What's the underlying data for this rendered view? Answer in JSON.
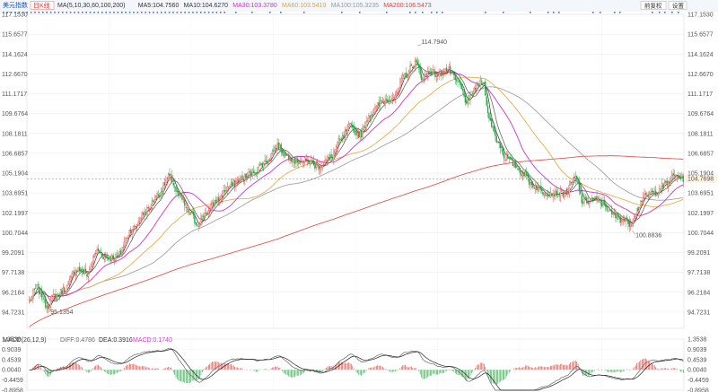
{
  "header": {
    "title": "美元指数",
    "period": "日K线",
    "ma_items": [
      {
        "text": "MA(5,10,30,60,100,200)",
        "color": "#333333"
      },
      {
        "text": "MA5:104.7560",
        "color": "#333333"
      },
      {
        "text": "MA10:104.6270",
        "color": "#333333"
      },
      {
        "text": "MA30:103.3780",
        "color": "#cc33cc"
      },
      {
        "text": "MA60:103.5410",
        "color": "#e8a33c"
      },
      {
        "text": "MA100:105.3235",
        "color": "#999999"
      },
      {
        "text": "MA200:106.5473",
        "color": "#e0433a"
      }
    ],
    "buttons": {
      "restore_label": "前复权",
      "settings_label": "设置"
    }
  },
  "chart_data": {
    "type": "candlestick",
    "ylim": [
      93.5,
      117.153
    ],
    "y_ticks": [
      "117.1530",
      "115.6577",
      "114.1624",
      "112.6670",
      "111.1717",
      "109.6764",
      "108.1811",
      "106.6857",
      "105.1904",
      "103.6951",
      "102.1997",
      "100.7044",
      "99.2091",
      "97.7138",
      "96.2184",
      "94.7231"
    ],
    "current_price": "104.7698",
    "annotations": {
      "high": "114.7940",
      "low_left": "95.1354",
      "low_right": "100.8836"
    },
    "anchors": [
      [
        0,
        95.6
      ],
      [
        6,
        96.6
      ],
      [
        10,
        96.0
      ],
      [
        14,
        95.2
      ],
      [
        20,
        95.9
      ],
      [
        28,
        96.4
      ],
      [
        38,
        98.0
      ],
      [
        46,
        97.6
      ],
      [
        54,
        99.3
      ],
      [
        62,
        98.8
      ],
      [
        70,
        98.9
      ],
      [
        82,
        101.0
      ],
      [
        94,
        102.4
      ],
      [
        102,
        103.5
      ],
      [
        112,
        104.9
      ],
      [
        120,
        103.4
      ],
      [
        128,
        102.2
      ],
      [
        134,
        101.4
      ],
      [
        142,
        102.3
      ],
      [
        150,
        103.2
      ],
      [
        160,
        104.2
      ],
      [
        170,
        104.8
      ],
      [
        180,
        105.3
      ],
      [
        188,
        106.0
      ],
      [
        198,
        107.2
      ],
      [
        206,
        106.5
      ],
      [
        214,
        106.1
      ],
      [
        222,
        106.1
      ],
      [
        230,
        105.7
      ],
      [
        240,
        106.3
      ],
      [
        248,
        107.6
      ],
      [
        256,
        108.7
      ],
      [
        264,
        108.1
      ],
      [
        272,
        109.6
      ],
      [
        282,
        110.6
      ],
      [
        292,
        111.0
      ],
      [
        300,
        112.6
      ],
      [
        308,
        113.5
      ],
      [
        314,
        112.4
      ],
      [
        320,
        112.9
      ],
      [
        326,
        112.6
      ],
      [
        334,
        113.0
      ],
      [
        342,
        112.0
      ],
      [
        350,
        110.5
      ],
      [
        356,
        111.6
      ],
      [
        362,
        112.1
      ],
      [
        368,
        109.0
      ],
      [
        374,
        107.6
      ],
      [
        380,
        106.4
      ],
      [
        386,
        105.9
      ],
      [
        394,
        105.2
      ],
      [
        402,
        104.3
      ],
      [
        410,
        103.8
      ],
      [
        418,
        103.7
      ],
      [
        428,
        103.7
      ],
      [
        436,
        104.8
      ],
      [
        442,
        103.0
      ],
      [
        450,
        103.2
      ],
      [
        458,
        102.9
      ],
      [
        466,
        102.0
      ],
      [
        474,
        101.7
      ],
      [
        480,
        101.4
      ],
      [
        484,
        102.3
      ],
      [
        490,
        103.3
      ],
      [
        498,
        103.7
      ],
      [
        506,
        104.2
      ],
      [
        516,
        105.0
      ],
      [
        522,
        104.8
      ]
    ],
    "macd": {
      "label": "MACD(26,12,9)",
      "diff": "DIFF:0.4786",
      "dea": "DEA:0.3916",
      "macd": "MACD:0.1740",
      "y_ticks": [
        "1.3538",
        "0.9039",
        "0.4539",
        "0.0040",
        "-0.4459",
        "-0.8958"
      ],
      "ylim": [
        -0.8958,
        1.3538
      ]
    },
    "colors": {
      "up": "#e0433a",
      "down": "#27a844",
      "ma5": "#333333",
      "ma10": "#555555",
      "ma30": "#cc33cc",
      "ma60": "#e8a33c",
      "ma100": "#999999",
      "ma200": "#e0433a",
      "dea": "#222222",
      "diff": "#666666"
    }
  }
}
